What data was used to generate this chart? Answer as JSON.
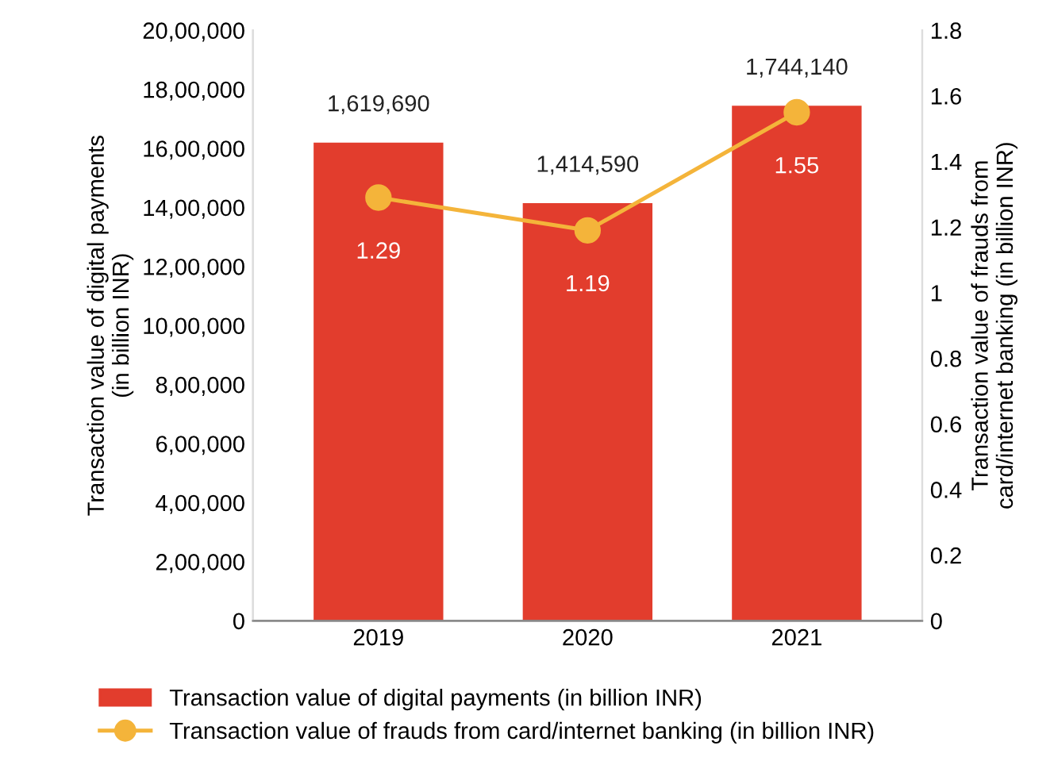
{
  "chart_data": {
    "type": "bar",
    "categories": [
      "2019",
      "2020",
      "2021"
    ],
    "series": [
      {
        "name": "Transaction value of digital payments (in billion INR)",
        "color": "#e23d2d",
        "values": [
          1619690,
          1414590,
          1744140
        ],
        "value_labels": [
          "1,619,690",
          "1,414,590",
          "1,744,140"
        ]
      },
      {
        "name": "Transaction value of frauds from card/internet banking (in billion INR)",
        "type": "line",
        "axis": "y2",
        "color": "#f4b43a",
        "values": [
          1.29,
          1.19,
          1.55
        ],
        "value_labels": [
          "1.29",
          "1.19",
          "1.55"
        ]
      }
    ],
    "ylabel": "Transaction value of digital payments\n(in billion INR)",
    "y2label": "Transaction value of frauds from\ncard/internet banking (in billion INR)",
    "ylim": [
      0,
      2000000
    ],
    "yticks": [
      0,
      {
        "value": 200000,
        "label": "2,00,000"
      },
      {
        "value": 400000,
        "label": "4,00,000"
      },
      {
        "value": 600000,
        "label": "6,00,000"
      },
      {
        "value": 800000,
        "label": "8,00,000"
      },
      {
        "value": 1000000,
        "label": "10,00,000"
      },
      {
        "value": 1200000,
        "label": "12,00,000"
      },
      {
        "value": 1400000,
        "label": "14,00,000"
      },
      {
        "value": 1600000,
        "label": "16,00,000"
      },
      {
        "value": 1800000,
        "label": "18,00,000"
      },
      {
        "value": 2000000,
        "label": "20,00,000"
      }
    ],
    "y2lim": [
      0,
      1.8
    ],
    "y2ticks": [
      0,
      0.2,
      0.4,
      0.6,
      0.8,
      1,
      1.2,
      1.4,
      1.6,
      1.8
    ],
    "marker": "circle",
    "line_style": "solid",
    "grid": false,
    "legend": "bottom"
  }
}
